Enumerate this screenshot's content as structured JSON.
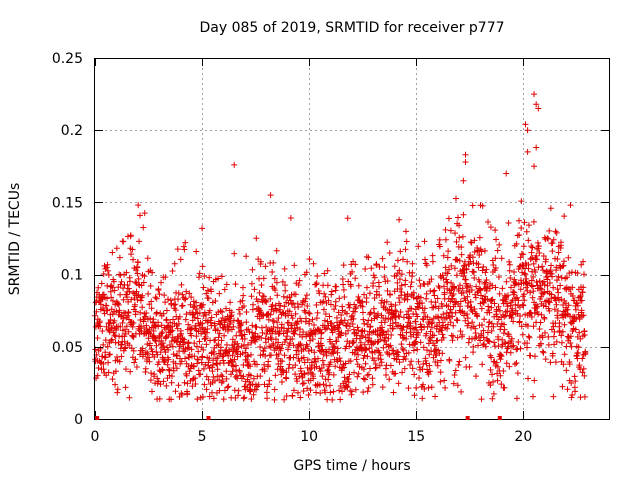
{
  "chart_data": {
    "type": "scatter",
    "title": "Day 085 of 2019, SRMTID for receiver p777",
    "xlabel": "GPS time / hours",
    "ylabel": "SRMTID / TECUs",
    "xlim": [
      0,
      24
    ],
    "ylim": [
      0,
      0.25
    ],
    "xticks": [
      0,
      5,
      10,
      15,
      20
    ],
    "yticks": [
      0,
      0.05,
      0.1,
      0.15,
      0.2,
      0.25
    ],
    "xtick_labels": [
      "0",
      "5",
      "10",
      "15",
      "20"
    ],
    "ytick_labels": [
      "0",
      "0.05",
      "0.1",
      "0.15",
      "0.2",
      "0.25"
    ],
    "grid": true,
    "marker": "+",
    "color": "#e00000",
    "baseline_markers_x": [
      0.1,
      5.3,
      17.4,
      18.9
    ],
    "series": [
      {
        "name": "SRMTID",
        "x_range": [
          0.0,
          22.9
        ],
        "sampling_interval_hours": 0.0085,
        "profile": [
          {
            "x": 0.0,
            "y": 0.055
          },
          {
            "x": 1.0,
            "y": 0.07
          },
          {
            "x": 2.0,
            "y": 0.08
          },
          {
            "x": 3.0,
            "y": 0.05
          },
          {
            "x": 4.0,
            "y": 0.058
          },
          {
            "x": 5.0,
            "y": 0.056
          },
          {
            "x": 6.0,
            "y": 0.05
          },
          {
            "x": 7.0,
            "y": 0.052
          },
          {
            "x": 8.0,
            "y": 0.055
          },
          {
            "x": 9.0,
            "y": 0.055
          },
          {
            "x": 10.0,
            "y": 0.05
          },
          {
            "x": 11.0,
            "y": 0.05
          },
          {
            "x": 12.0,
            "y": 0.058
          },
          {
            "x": 13.0,
            "y": 0.06
          },
          {
            "x": 14.0,
            "y": 0.072
          },
          {
            "x": 15.0,
            "y": 0.06
          },
          {
            "x": 16.0,
            "y": 0.062
          },
          {
            "x": 17.0,
            "y": 0.088
          },
          {
            "x": 18.0,
            "y": 0.08
          },
          {
            "x": 19.0,
            "y": 0.062
          },
          {
            "x": 20.0,
            "y": 0.095
          },
          {
            "x": 21.0,
            "y": 0.085
          },
          {
            "x": 22.0,
            "y": 0.07
          },
          {
            "x": 22.9,
            "y": 0.06
          }
        ],
        "highlights": [
          {
            "x": 6.5,
            "y": 0.176
          },
          {
            "x": 8.2,
            "y": 0.155
          },
          {
            "x": 11.8,
            "y": 0.139
          },
          {
            "x": 17.3,
            "y": 0.183
          },
          {
            "x": 17.3,
            "y": 0.178
          },
          {
            "x": 17.2,
            "y": 0.165
          },
          {
            "x": 19.2,
            "y": 0.17
          },
          {
            "x": 20.1,
            "y": 0.204
          },
          {
            "x": 20.2,
            "y": 0.2
          },
          {
            "x": 20.5,
            "y": 0.225
          },
          {
            "x": 20.6,
            "y": 0.218
          },
          {
            "x": 20.7,
            "y": 0.215
          },
          {
            "x": 20.6,
            "y": 0.188
          },
          {
            "x": 20.5,
            "y": 0.175
          },
          {
            "x": 20.2,
            "y": 0.185
          },
          {
            "x": 2.1,
            "y": 0.141
          },
          {
            "x": 5.0,
            "y": 0.132
          },
          {
            "x": 14.2,
            "y": 0.138
          },
          {
            "x": 18.0,
            "y": 0.148
          }
        ]
      }
    ]
  }
}
